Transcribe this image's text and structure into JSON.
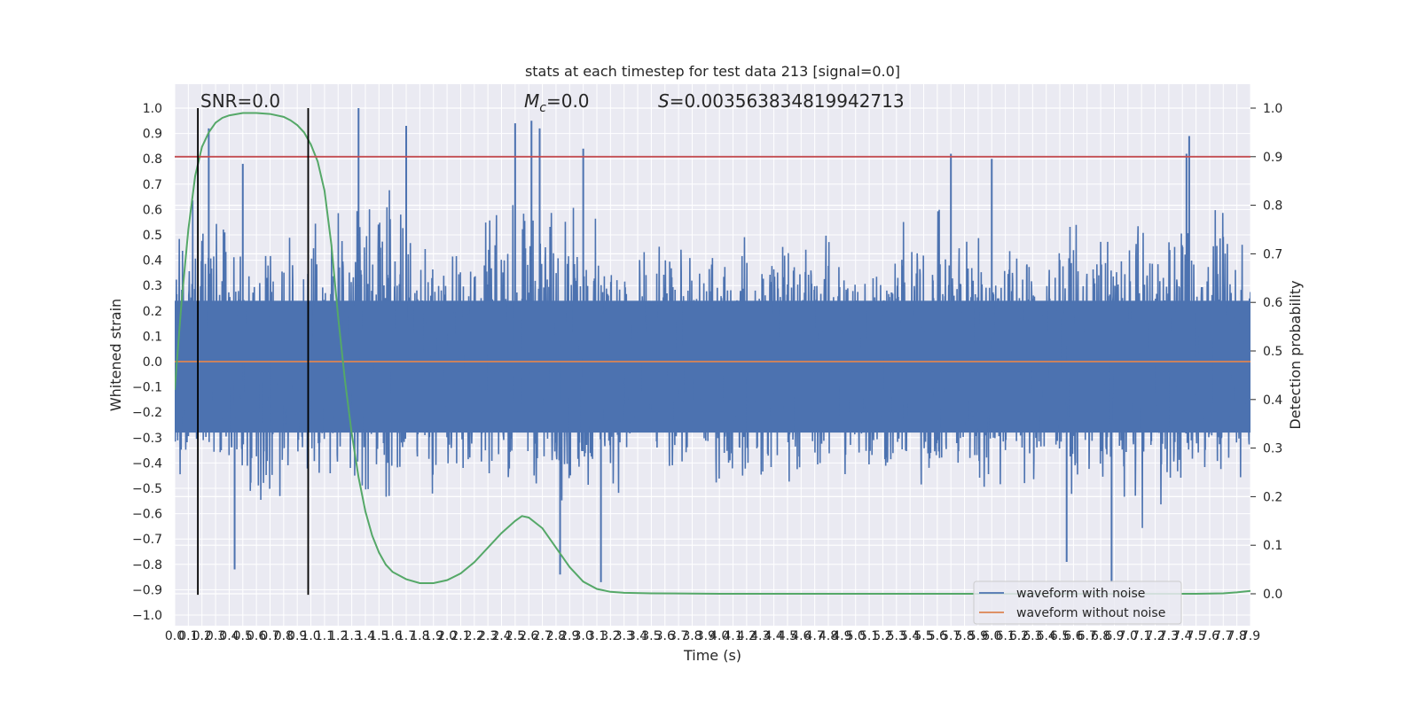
{
  "chart_data": {
    "type": "line",
    "title": "stats at each timestep for test data 213 [signal=0.0]",
    "xlabel": "Time (s)",
    "ylabel_left": "Whitened strain",
    "ylabel_right": "Detection probability",
    "xlim": [
      0.0,
      7.9
    ],
    "ylim_left": [
      -1.0,
      1.0
    ],
    "ylim_right": [
      0.0,
      1.0
    ],
    "x_ticks": [
      "0.0",
      "0.1",
      "0.2",
      "0.3",
      "0.4",
      "0.5",
      "0.6",
      "0.7",
      "0.8",
      "0.9",
      "1.0",
      "1.1",
      "1.2",
      "1.3",
      "1.4",
      "1.5",
      "1.6",
      "1.7",
      "1.8",
      "1.9",
      "2.0",
      "2.1",
      "2.2",
      "2.3",
      "2.4",
      "2.5",
      "2.6",
      "2.7",
      "2.8",
      "2.9",
      "3.0",
      "3.1",
      "3.2",
      "3.3",
      "3.4",
      "3.5",
      "3.6",
      "3.7",
      "3.8",
      "3.9",
      "4.0",
      "4.1",
      "4.2",
      "4.3",
      "4.4",
      "4.5",
      "4.6",
      "4.7",
      "4.8",
      "4.9",
      "5.0",
      "5.1",
      "5.2",
      "5.3",
      "5.4",
      "5.5",
      "5.6",
      "5.7",
      "5.8",
      "5.9",
      "6.0",
      "6.1",
      "6.2",
      "6.3",
      "6.4",
      "6.5",
      "6.6",
      "6.7",
      "6.8",
      "6.9",
      "7.0",
      "7.1",
      "7.2",
      "7.3",
      "7.4",
      "7.5",
      "7.6",
      "7.7",
      "7.8",
      "7.9"
    ],
    "y_ticks_left": [
      "1.0",
      "0.9",
      "0.8",
      "0.7",
      "0.6",
      "0.5",
      "0.4",
      "0.3",
      "0.2",
      "0.1",
      "0.0",
      "−0.1",
      "−0.2",
      "−0.3",
      "−0.4",
      "−0.5",
      "−0.6",
      "−0.7",
      "−0.8",
      "−0.9",
      "−1.0"
    ],
    "y_ticks_right": [
      "1.0",
      "0.9",
      "0.8",
      "0.7",
      "0.6",
      "0.5",
      "0.4",
      "0.3",
      "0.2",
      "0.1",
      "0.0"
    ],
    "grid": true,
    "legend_position": "bottom-right",
    "annotations": {
      "snr": "SNR=0.0",
      "mc_symbol": "M",
      "mc_sub": "c",
      "mc_value": "=0.0",
      "s_symbol": "S",
      "s_value": "=0.003563834819942713"
    },
    "vertical_lines_x": [
      0.17,
      0.98
    ],
    "threshold_probability": 0.9,
    "series": [
      {
        "name": "waveform with noise",
        "color": "#4c72b0",
        "kind": "noise",
        "envelope": {
          "x": [
            0.0,
            0.5,
            1.0,
            1.5,
            2.0,
            2.5,
            3.0,
            3.5,
            4.0,
            4.5,
            5.0,
            5.5,
            6.0,
            6.5,
            7.0,
            7.5,
            7.9
          ],
          "y_max": [
            0.92,
            0.78,
            0.7,
            0.93,
            0.63,
            0.95,
            0.84,
            0.62,
            0.66,
            0.8,
            0.68,
            0.82,
            0.8,
            0.7,
            0.78,
            0.89,
            0.72
          ],
          "y_min": [
            -0.64,
            -0.82,
            -0.76,
            -0.78,
            -0.73,
            -0.7,
            -0.87,
            -0.65,
            -0.72,
            -0.7,
            -0.72,
            -0.76,
            -0.79,
            -0.68,
            -0.87,
            -0.77,
            -0.68
          ]
        },
        "spikes": [
          {
            "x": 0.25,
            "y": 0.92
          },
          {
            "x": 0.5,
            "y": 0.78
          },
          {
            "x": 1.35,
            "y": 1.0
          },
          {
            "x": 1.7,
            "y": 0.93
          },
          {
            "x": 2.5,
            "y": 0.94
          },
          {
            "x": 2.62,
            "y": 0.95
          },
          {
            "x": 2.68,
            "y": 0.92
          },
          {
            "x": 3.0,
            "y": 0.84
          },
          {
            "x": 5.7,
            "y": 0.82
          },
          {
            "x": 6.0,
            "y": 0.8
          },
          {
            "x": 7.45,
            "y": 0.89
          },
          {
            "x": 7.43,
            "y": 0.82
          },
          {
            "x": 0.44,
            "y": -0.82
          },
          {
            "x": 3.13,
            "y": -0.87
          },
          {
            "x": 2.83,
            "y": -0.84
          },
          {
            "x": 6.88,
            "y": -0.87
          },
          {
            "x": 6.55,
            "y": -0.79
          }
        ]
      },
      {
        "name": "waveform without noise",
        "color": "#dd8452",
        "x": [
          0.0,
          7.9
        ],
        "y": [
          0.0,
          0.0
        ]
      },
      {
        "name": "detection probability",
        "color": "#55a868",
        "axis": "right",
        "x": [
          0.0,
          0.05,
          0.1,
          0.15,
          0.2,
          0.25,
          0.3,
          0.35,
          0.4,
          0.5,
          0.6,
          0.7,
          0.8,
          0.85,
          0.9,
          0.95,
          1.0,
          1.05,
          1.1,
          1.15,
          1.2,
          1.25,
          1.3,
          1.35,
          1.4,
          1.45,
          1.5,
          1.55,
          1.6,
          1.7,
          1.8,
          1.9,
          2.0,
          2.1,
          2.2,
          2.3,
          2.4,
          2.5,
          2.55,
          2.6,
          2.7,
          2.8,
          2.9,
          3.0,
          3.1,
          3.2,
          3.3,
          3.5,
          4.0,
          5.0,
          6.0,
          7.0,
          7.5,
          7.7,
          7.8,
          7.9
        ],
        "y": [
          0.42,
          0.6,
          0.75,
          0.86,
          0.92,
          0.95,
          0.97,
          0.98,
          0.985,
          0.99,
          0.99,
          0.988,
          0.982,
          0.975,
          0.965,
          0.95,
          0.925,
          0.89,
          0.83,
          0.72,
          0.57,
          0.44,
          0.33,
          0.24,
          0.17,
          0.12,
          0.085,
          0.06,
          0.045,
          0.03,
          0.022,
          0.022,
          0.028,
          0.042,
          0.065,
          0.095,
          0.125,
          0.15,
          0.16,
          0.157,
          0.135,
          0.095,
          0.055,
          0.025,
          0.01,
          0.004,
          0.002,
          0.001,
          0.0,
          0.0,
          0.0,
          0.0,
          0.0,
          0.001,
          0.003,
          0.006
        ]
      },
      {
        "name": "threshold",
        "color": "#c44e52",
        "axis": "right",
        "x": [
          0.0,
          7.9
        ],
        "y": [
          0.9,
          0.9
        ]
      }
    ]
  }
}
